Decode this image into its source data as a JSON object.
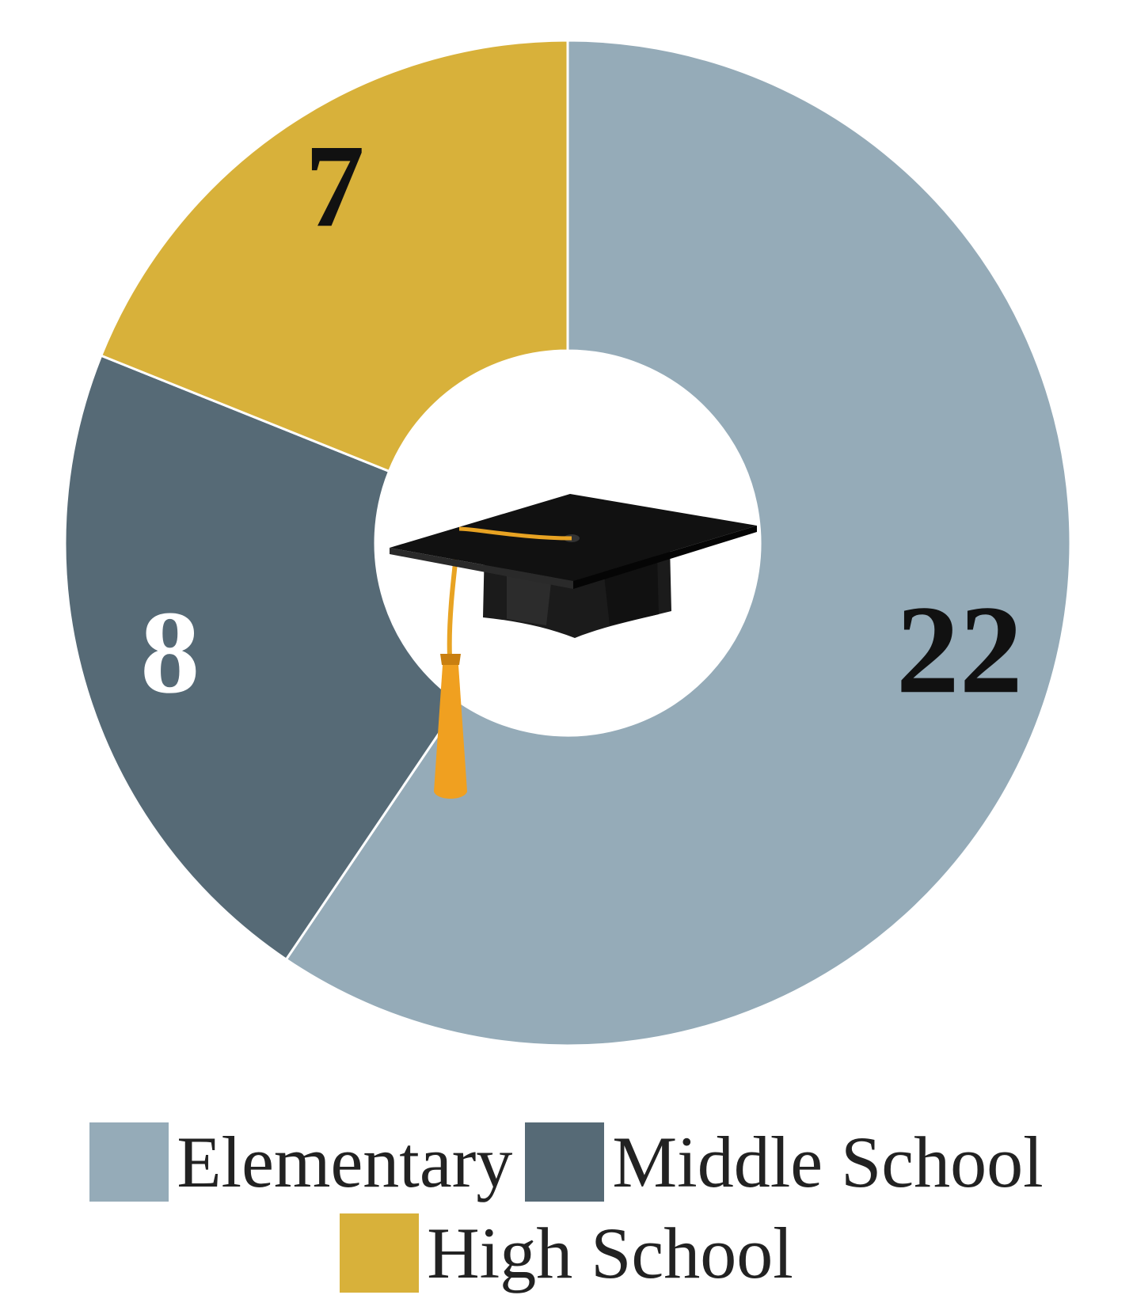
{
  "chart_data": {
    "type": "pie",
    "style": "donut",
    "categories": [
      "Elementary",
      "Middle School",
      "High School"
    ],
    "values": [
      22,
      8,
      7
    ],
    "colors": [
      "#95abb8",
      "#566a76",
      "#d8b13a"
    ],
    "label_colors": [
      "#111111",
      "#ffffff",
      "#111111"
    ],
    "center_icon": "graduation-cap-icon",
    "legend": {
      "placement": "bottom",
      "items": [
        {
          "label": "Elementary",
          "color": "#95abb8"
        },
        {
          "label": "Middle School",
          "color": "#566a76"
        },
        {
          "label": "High School",
          "color": "#d8b13a"
        }
      ]
    }
  }
}
